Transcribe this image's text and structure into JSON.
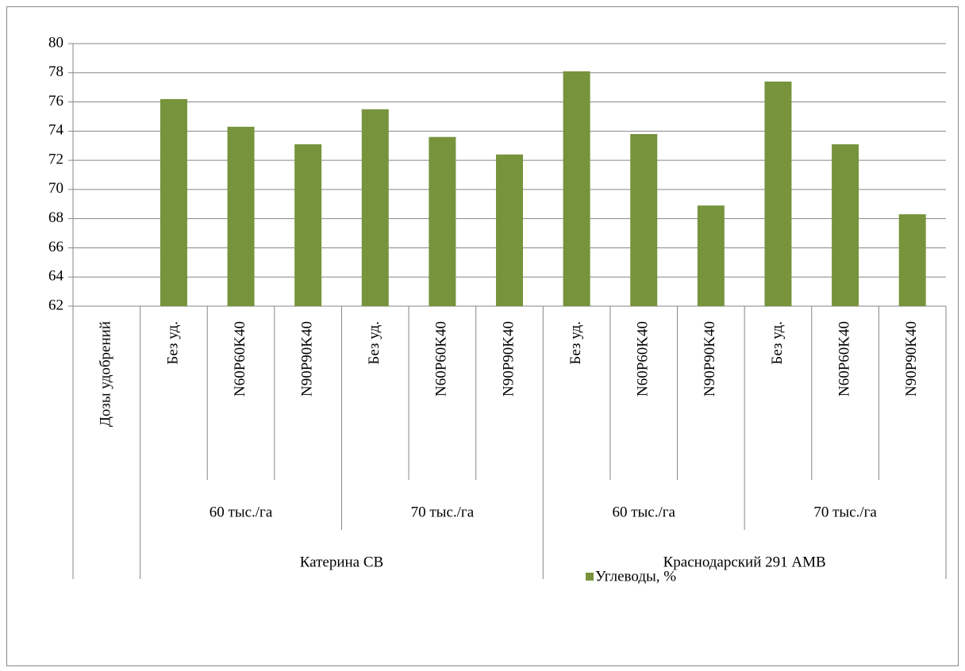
{
  "chart_data": {
    "type": "bar",
    "categories": [
      "Дозы удобрений",
      "Без уд.",
      "N60P60K40",
      "N90P90K40",
      "Без уд.",
      "N60P60K40",
      "N90P90K40",
      "Без уд.",
      "N60P60K40",
      "N90P90K40",
      "Без уд.",
      "N60P60K40",
      "N90P90K40"
    ],
    "groups": [
      "60 тыс./га",
      "70 тыс./га",
      "60 тыс./га",
      "70 тыс./га"
    ],
    "supergroups": [
      "Катерина СВ",
      "Краснодарский 291 АМВ"
    ],
    "series": [
      {
        "name": "Углеводы, %",
        "color": "#77933c",
        "values": [
          null,
          76.2,
          74.3,
          73.1,
          75.5,
          73.6,
          72.4,
          78.1,
          73.8,
          68.9,
          77.4,
          73.1,
          68.3
        ]
      }
    ],
    "ylim": [
      62,
      80
    ],
    "yticks": [
      62,
      64,
      66,
      68,
      70,
      72,
      74,
      76,
      78,
      80
    ],
    "grid": true,
    "legend": "bottom"
  }
}
